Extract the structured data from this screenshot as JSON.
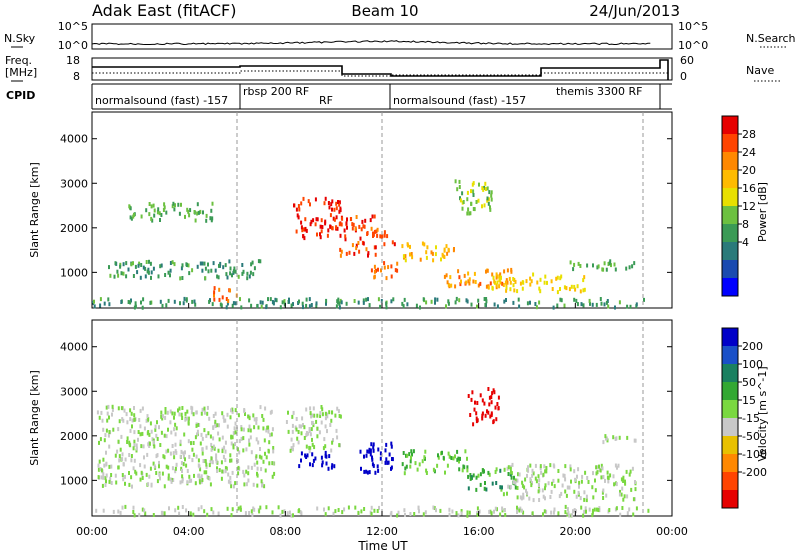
{
  "header": {
    "station": "Adak East (fitACF)",
    "beam": "Beam 10",
    "date": "24/Jun/2013"
  },
  "noise_panel": {
    "left_label": "N.Sky",
    "right_label": "N.Search",
    "left_ticks": [
      "10^5",
      "10^0"
    ],
    "right_ticks": [
      "10^5",
      "10^0"
    ]
  },
  "freq_panel": {
    "left_label_1": "Freq.",
    "left_label_2": "[MHz]",
    "left_ticks": [
      "18",
      "8"
    ],
    "right_label": "Nave",
    "right_ticks": [
      "60",
      "0"
    ]
  },
  "cpid": {
    "label": "CPID",
    "segments": [
      {
        "name": "normalsound (fast) -157",
        "x_hour": 0.1
      },
      {
        "name": "rbsp 200 RF",
        "x_hour": 6.05,
        "raised": true
      },
      {
        "name": "RF",
        "x_hour": 9.95
      },
      {
        "name": "normalsound (fast) -157",
        "x_hour": 12.05
      },
      {
        "name": "themis 3300 RF",
        "x_hour": 18.5,
        "raised": true
      }
    ],
    "boundaries_hour": [
      6.0,
      12.0,
      22.8
    ]
  },
  "time_axis": {
    "label": "Time UT",
    "ticks": [
      "00:00",
      "04:00",
      "08:00",
      "12:00",
      "16:00",
      "20:00",
      "00:00"
    ],
    "tick_hours": [
      0,
      4,
      8,
      12,
      16,
      20,
      24
    ]
  },
  "range_axis": {
    "label": "Slant Range [km]",
    "ticks": [
      "1000",
      "2000",
      "3000",
      "4000"
    ],
    "tick_values": [
      1000,
      2000,
      3000,
      4000
    ],
    "range": [
      200,
      4600
    ]
  },
  "power_scale": {
    "label": "Power [dB]",
    "ticks": [
      "28",
      "24",
      "20",
      "16",
      "12",
      "8",
      "4"
    ],
    "colors": [
      "#e60000",
      "#ff4400",
      "#ff8800",
      "#ffbb00",
      "#e8e000",
      "#6cc040",
      "#3a9a55",
      "#2a7a7a",
      "#1a4ab0",
      "#0000ff"
    ]
  },
  "velocity_scale": {
    "label": "Velocity [m s^-1]",
    "ticks": [
      "200",
      "100",
      "50",
      "15",
      "-15",
      "-50",
      "-100",
      "-200"
    ],
    "colors": [
      "#0000c8",
      "#1a50c8",
      "#1a8060",
      "#33a833",
      "#7ad840",
      "#c8c8c8",
      "#e8c000",
      "#ff8800",
      "#ff4400",
      "#e60000"
    ]
  },
  "chart_data": {
    "type": "heatmap",
    "title": "Adak East (fitACF) Beam 10 24/Jun/2013",
    "xlabel": "Time UT",
    "xlim": [
      0,
      24
    ],
    "ylabel": "Slant Range [km]",
    "ylim": [
      200,
      4600
    ],
    "panels": [
      {
        "name": "Power [dB]",
        "clim": [
          0,
          30
        ],
        "echo_regions": [
          {
            "t": [
              0.0,
              23.0
            ],
            "range": [
              250,
              450
            ],
            "value": 10
          },
          {
            "t": [
              0.5,
              7.0
            ],
            "range": [
              900,
              1300
            ],
            "value": 10
          },
          {
            "t": [
              5.0,
              6.0
            ],
            "range": [
              400,
              700
            ],
            "value": 24
          },
          {
            "t": [
              8.3,
              10.3
            ],
            "range": [
              1800,
              2700
            ],
            "value": 28
          },
          {
            "t": [
              10.2,
              11.8
            ],
            "range": [
              1400,
              2300
            ],
            "value": 26
          },
          {
            "t": [
              11.5,
              12.5
            ],
            "range": [
              1600,
              2000
            ],
            "value": 26
          },
          {
            "t": [
              11.5,
              12.6
            ],
            "range": [
              900,
              1300
            ],
            "value": 24
          },
          {
            "t": [
              12.8,
              15.0
            ],
            "range": [
              1300,
              1700
            ],
            "value": 20
          },
          {
            "t": [
              14.5,
              17.5
            ],
            "range": [
              700,
              1100
            ],
            "value": 22
          },
          {
            "t": [
              16.5,
              20.5
            ],
            "range": [
              600,
              1000
            ],
            "value": 18
          },
          {
            "t": [
              1.5,
              5.0
            ],
            "range": [
              2200,
              2600
            ],
            "value": 12
          },
          {
            "t": [
              15.0,
              16.5
            ],
            "range": [
              2300,
              3100
            ],
            "value": 14
          },
          {
            "t": [
              19.5,
              22.5
            ],
            "range": [
              1100,
              1300
            ],
            "value": 12
          }
        ]
      },
      {
        "name": "Velocity [m s^-1]",
        "clim": [
          -200,
          200
        ],
        "echo_regions": [
          {
            "t": [
              0.0,
              23.0
            ],
            "range": [
              250,
              450
            ],
            "value": 0
          },
          {
            "t": [
              0.2,
              7.5
            ],
            "range": [
              900,
              2700
            ],
            "value": 0
          },
          {
            "t": [
              8.0,
              10.3
            ],
            "range": [
              1700,
              2700
            ],
            "value": 0
          },
          {
            "t": [
              8.5,
              10.0
            ],
            "range": [
              1300,
              1700
            ],
            "value": 200
          },
          {
            "t": [
              11.0,
              12.5
            ],
            "range": [
              1200,
              1900
            ],
            "value": 200
          },
          {
            "t": [
              12.8,
              15.5
            ],
            "range": [
              1200,
              1700
            ],
            "value": 40
          },
          {
            "t": [
              15.5,
              17.5
            ],
            "range": [
              800,
              1300
            ],
            "value": 60
          },
          {
            "t": [
              15.5,
              16.8
            ],
            "range": [
              2300,
              3100
            ],
            "value": -200
          },
          {
            "t": [
              17.0,
              22.5
            ],
            "range": [
              600,
              1400
            ],
            "value": 0
          },
          {
            "t": [
              21.0,
              22.5
            ],
            "range": [
              1900,
              2100
            ],
            "value": 0
          }
        ]
      }
    ]
  }
}
